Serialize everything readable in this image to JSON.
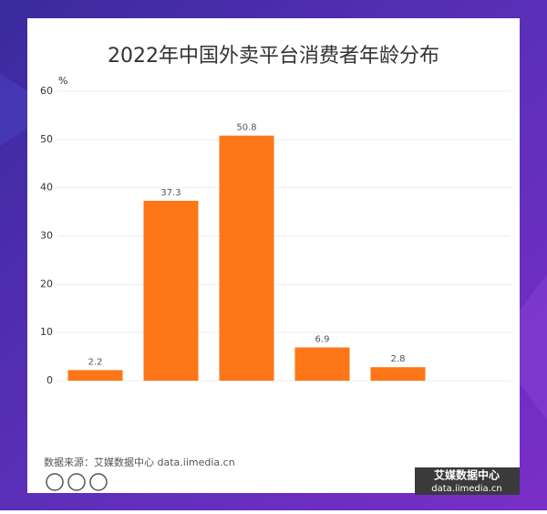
{
  "chart_data": {
    "type": "bar",
    "title": "2022年中国外卖平台消费者年龄分布",
    "y_label": "%",
    "categories": [
      null,
      null,
      null,
      null,
      null
    ],
    "values": [
      2.2,
      37.3,
      50.8,
      6.9,
      2.8
    ],
    "color": "#fd7617",
    "ylim": [
      0,
      60
    ],
    "yticks": [
      0,
      10,
      20,
      30,
      40,
      50,
      60
    ],
    "grid": true,
    "source": "数据来源：艾媒数据中心 data.iimedia.cn",
    "logo_name": "艾媒数据中心",
    "logo_url": "data.iimedia.cn"
  }
}
